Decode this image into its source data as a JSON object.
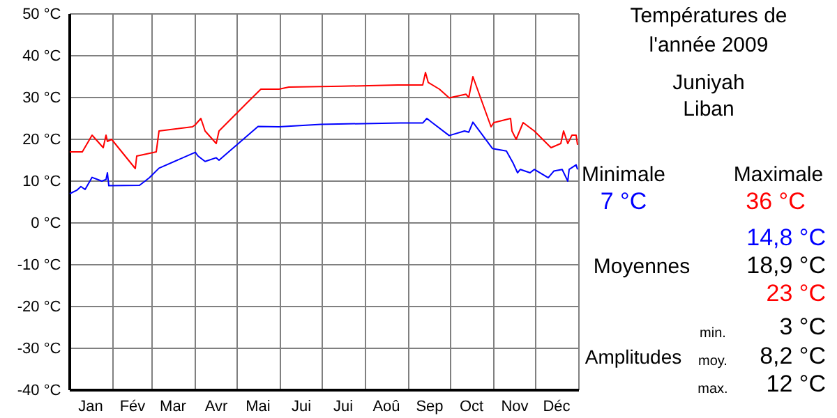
{
  "chart_data": {
    "type": "line",
    "title": "Températures de\nl'année 2009",
    "subtitle": "Juniyah\nLiban",
    "xlim": [
      "2009-01-01",
      "2010-01-01"
    ],
    "xticks": [
      {
        "value": "2009-01-01",
        "label": null
      },
      {
        "value": "2009-01-16",
        "label": "Jan"
      },
      {
        "value": "2009-02-01",
        "label": null
      },
      {
        "value": "2009-02-15",
        "label": "Fév"
      },
      {
        "value": "2009-03-01",
        "label": null
      },
      {
        "value": "2009-03-16",
        "label": "Mar"
      },
      {
        "value": "2009-04-01",
        "label": null
      },
      {
        "value": "2009-04-16",
        "label": "Avr"
      },
      {
        "value": "2009-05-01",
        "label": null
      },
      {
        "value": "2009-05-16",
        "label": "Mai"
      },
      {
        "value": "2009-06-01",
        "label": null
      },
      {
        "value": "2009-06-16",
        "label": "Jui"
      },
      {
        "value": "2009-07-01",
        "label": null
      },
      {
        "value": "2009-07-16",
        "label": "Jui"
      },
      {
        "value": "2009-08-01",
        "label": null
      },
      {
        "value": "2009-08-16",
        "label": "Aoû"
      },
      {
        "value": "2009-09-01",
        "label": null
      },
      {
        "value": "2009-09-16",
        "label": "Sep"
      },
      {
        "value": "2009-10-01",
        "label": null
      },
      {
        "value": "2009-10-16",
        "label": "Oct"
      },
      {
        "value": "2009-11-01",
        "label": null
      },
      {
        "value": "2009-11-16",
        "label": "Nov"
      },
      {
        "value": "2009-12-01",
        "label": null
      },
      {
        "value": "2009-12-16",
        "label": "Déc"
      },
      {
        "value": "2010-01-01",
        "label": null
      }
    ],
    "ylim": [
      -40,
      50
    ],
    "yticks": [
      {
        "value": -40,
        "label": "-40 °C"
      },
      {
        "value": -30,
        "label": "-30 °C"
      },
      {
        "value": -20,
        "label": "-20 °C"
      },
      {
        "value": -10,
        "label": "-10 °C"
      },
      {
        "value": 0,
        "label": "0 °C"
      },
      {
        "value": 10,
        "label": "10 °C"
      },
      {
        "value": 20,
        "label": "20 °C"
      },
      {
        "value": 30,
        "label": "30 °C"
      },
      {
        "value": 40,
        "label": "40 °C"
      },
      {
        "value": 50,
        "label": "50 °C"
      }
    ],
    "grid": true,
    "series": [
      {
        "color": "#ff0000",
        "x": [
          "2009-01-01",
          "2009-01-10",
          "2009-01-17",
          "2009-01-25",
          "2009-01-27",
          "2009-01-28",
          "2009-01-31",
          "2009-02-17",
          "2009-02-18",
          "2009-03-04",
          "2009-03-06",
          "2009-03-30",
          "2009-04-01",
          "2009-04-05",
          "2009-04-08",
          "2009-04-16",
          "2009-04-18",
          "2009-05-08",
          "2009-05-18",
          "2009-05-31",
          "2009-06-07",
          "2009-07-15",
          "2009-08-24",
          "2009-09-11",
          "2009-09-13",
          "2009-09-15",
          "2009-09-23",
          "2009-09-30",
          "2009-10-12",
          "2009-10-14",
          "2009-10-17",
          "2009-10-30",
          "2009-11-01",
          "2009-11-13",
          "2009-11-14",
          "2009-11-17",
          "2009-11-22",
          "2009-11-30",
          "2009-12-12",
          "2009-12-19",
          "2009-12-21",
          "2009-12-24",
          "2009-12-27",
          "2009-12-30",
          "2009-12-31"
        ],
        "values": [
          17,
          17,
          21,
          18,
          21,
          19.5,
          20,
          13,
          16,
          17,
          22,
          23,
          23.5,
          25,
          22,
          19,
          22,
          28.7,
          32,
          32,
          32.5,
          32.7,
          33,
          33,
          36,
          33.6,
          32,
          29.9,
          30.8,
          30,
          35,
          23,
          24,
          25,
          22,
          20,
          24,
          22,
          18,
          19,
          22,
          19,
          21,
          21,
          18.7
        ]
      },
      {
        "color": "#0000ff",
        "x": [
          "2009-01-01",
          "2009-01-06",
          "2009-01-09",
          "2009-01-12",
          "2009-01-17",
          "2009-01-24",
          "2009-01-27",
          "2009-01-28",
          "2009-01-29",
          "2009-02-20",
          "2009-02-27",
          "2009-03-06",
          "2009-04-01",
          "2009-04-03",
          "2009-04-08",
          "2009-04-16",
          "2009-04-18",
          "2009-05-16",
          "2009-05-31",
          "2009-06-30",
          "2009-08-26",
          "2009-09-11",
          "2009-09-14",
          "2009-09-17",
          "2009-09-30",
          "2009-10-11",
          "2009-10-14",
          "2009-10-17",
          "2009-10-31",
          "2009-11-10",
          "2009-11-15",
          "2009-11-18",
          "2009-11-20",
          "2009-11-27",
          "2009-11-30",
          "2009-12-10",
          "2009-12-14",
          "2009-12-20",
          "2009-12-24",
          "2009-12-25",
          "2009-12-30",
          "2009-12-31"
        ],
        "values": [
          7,
          7.8,
          8.7,
          8,
          10.9,
          10,
          10.4,
          12,
          8.9,
          9,
          10.8,
          13.1,
          16.9,
          16,
          14.7,
          15.6,
          15,
          23.1,
          23,
          23.6,
          23.9,
          23.9,
          25,
          24.2,
          20.9,
          22,
          21.7,
          24.1,
          17.8,
          17.2,
          14.2,
          12,
          12.8,
          12,
          12.8,
          10.8,
          12.4,
          12.8,
          10,
          12.8,
          13.9,
          12.8
        ]
      }
    ],
    "annotations": [
      "Minimale",
      "Maximale",
      "7 °C",
      "36 °C",
      "14,8 °C",
      "Moyennes",
      "18,9 °C",
      "23 °C",
      "Amplitudes",
      "min.",
      "3 °C",
      "moy.",
      "8,2 °C",
      "max.",
      "12 °C"
    ]
  }
}
